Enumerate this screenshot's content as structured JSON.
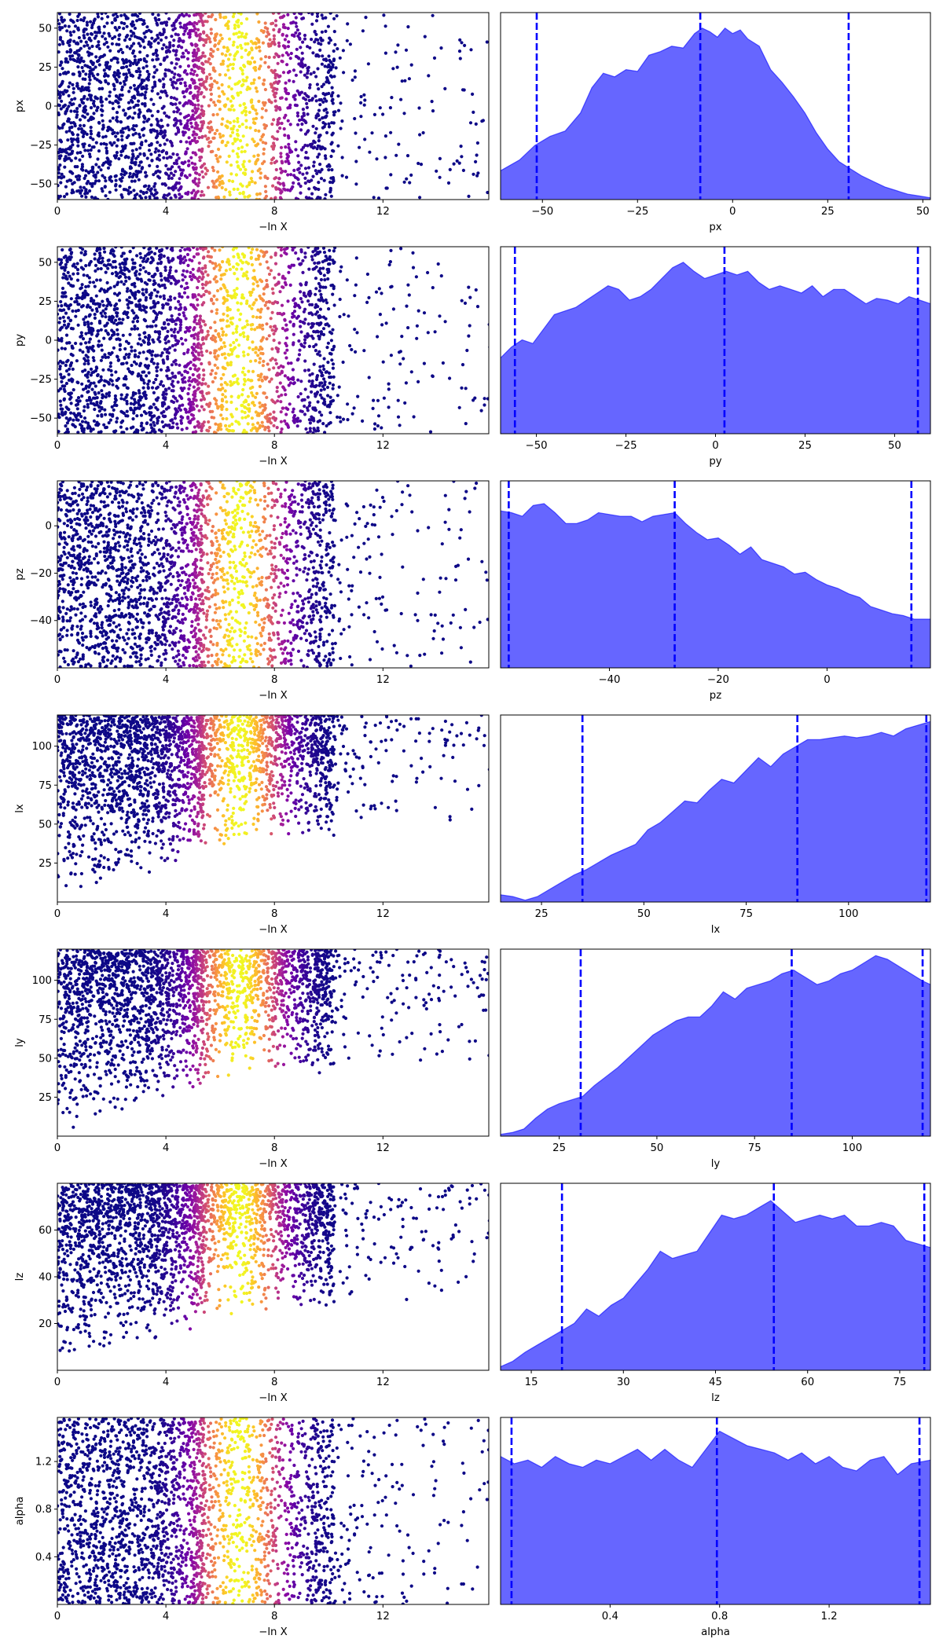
{
  "chart_data": [
    {
      "type": "scatter",
      "panel": "px-trace",
      "x_range": [
        0,
        15.9
      ],
      "y_range": [
        -60,
        60
      ],
      "xticks": [
        0,
        4,
        8,
        12
      ],
      "xtick_labels": [
        "0",
        "4",
        "8",
        "12"
      ],
      "yticks": [
        -50,
        -25,
        0,
        25,
        50
      ],
      "ytick_labels": [
        "−50",
        "−25",
        "0",
        "25",
        "50"
      ],
      "xlabel": "−ln X",
      "ylabel": "px",
      "colormap": "plasma",
      "color_peak_x": 6.7
    },
    {
      "type": "area",
      "panel": "px-posterior",
      "x_range": [
        -61,
        52
      ],
      "xticks": [
        -50,
        -25,
        0,
        25,
        50
      ],
      "xtick_labels": [
        "−50",
        "−25",
        "0",
        "25",
        "50"
      ],
      "xlabel": "px",
      "x": [
        -61,
        -56,
        -52,
        -48,
        -44,
        -40,
        -37,
        -34,
        -31,
        -28,
        -25,
        -22,
        -19,
        -16,
        -13,
        -10,
        -8,
        -6,
        -4,
        -2,
        0,
        2,
        4,
        7,
        10,
        13,
        16,
        19,
        22,
        25,
        28,
        31,
        34,
        37,
        40,
        43,
        46,
        49,
        52
      ],
      "y": [
        0.16,
        0.22,
        0.3,
        0.35,
        0.38,
        0.48,
        0.62,
        0.7,
        0.68,
        0.72,
        0.71,
        0.8,
        0.82,
        0.85,
        0.84,
        0.92,
        0.95,
        0.93,
        0.9,
        0.95,
        0.92,
        0.94,
        0.89,
        0.85,
        0.72,
        0.65,
        0.57,
        0.48,
        0.37,
        0.28,
        0.21,
        0.17,
        0.13,
        0.1,
        0.07,
        0.05,
        0.03,
        0.02,
        0.01
      ],
      "quantile_lines": [
        -51.5,
        -8.5,
        30.5
      ],
      "color": "#6666ff",
      "line_color": "#0000ff"
    },
    {
      "type": "scatter",
      "panel": "py-trace",
      "x_range": [
        0,
        15.9
      ],
      "y_range": [
        -60,
        60
      ],
      "xticks": [
        0,
        4,
        8,
        12
      ],
      "xtick_labels": [
        "0",
        "4",
        "8",
        "12"
      ],
      "yticks": [
        -50,
        -25,
        0,
        25,
        50
      ],
      "ytick_labels": [
        "−50",
        "−25",
        "0",
        "25",
        "50"
      ],
      "xlabel": "−ln X",
      "ylabel": "py",
      "colormap": "plasma",
      "color_peak_x": 6.7
    },
    {
      "type": "area",
      "panel": "py-posterior",
      "x_range": [
        -60,
        60
      ],
      "xticks": [
        -50,
        -25,
        0,
        25,
        50
      ],
      "xtick_labels": [
        "−50",
        "−25",
        "0",
        "25",
        "50"
      ],
      "xlabel": "py",
      "x": [
        -60,
        -57,
        -54,
        -51,
        -48,
        -45,
        -42,
        -39,
        -36,
        -33,
        -30,
        -27,
        -24,
        -21,
        -18,
        -15,
        -12,
        -9,
        -6,
        -3,
        0,
        3,
        6,
        9,
        12,
        15,
        18,
        21,
        24,
        27,
        30,
        33,
        36,
        39,
        42,
        45,
        48,
        51,
        54,
        57,
        60
      ],
      "y": [
        0.42,
        0.48,
        0.52,
        0.5,
        0.58,
        0.66,
        0.68,
        0.7,
        0.74,
        0.78,
        0.82,
        0.8,
        0.74,
        0.76,
        0.8,
        0.86,
        0.92,
        0.95,
        0.9,
        0.86,
        0.88,
        0.9,
        0.88,
        0.9,
        0.84,
        0.8,
        0.82,
        0.8,
        0.78,
        0.82,
        0.76,
        0.8,
        0.8,
        0.76,
        0.72,
        0.75,
        0.74,
        0.72,
        0.76,
        0.74,
        0.72
      ],
      "quantile_lines": [
        -56,
        2.5,
        56.5
      ],
      "color": "#6666ff",
      "line_color": "#0000ff"
    },
    {
      "type": "scatter",
      "panel": "pz-trace",
      "x_range": [
        0,
        15.9
      ],
      "y_range": [
        -60,
        19
      ],
      "xticks": [
        0,
        4,
        8,
        12
      ],
      "xtick_labels": [
        "0",
        "4",
        "8",
        "12"
      ],
      "yticks": [
        -40,
        -20,
        0
      ],
      "ytick_labels": [
        "−40",
        "−20",
        "0"
      ],
      "xlabel": "−ln X",
      "ylabel": "pz",
      "colormap": "plasma",
      "color_peak_x": 6.7
    },
    {
      "type": "area",
      "panel": "pz-posterior",
      "x_range": [
        -60,
        19
      ],
      "xticks": [
        -40,
        -20,
        0
      ],
      "xtick_labels": [
        "−40",
        "−20",
        "0"
      ],
      "xlabel": "pz",
      "x": [
        -60,
        -58,
        -56,
        -54,
        -52,
        -50,
        -48,
        -46,
        -44,
        -42,
        -40,
        -38,
        -36,
        -34,
        -32,
        -30,
        -28,
        -26,
        -24,
        -22,
        -20,
        -18,
        -16,
        -14,
        -12,
        -10,
        -8,
        -6,
        -4,
        -2,
        0,
        2,
        4,
        6,
        8,
        10,
        12,
        14,
        16,
        19
      ],
      "y": [
        0.87,
        0.86,
        0.84,
        0.9,
        0.91,
        0.86,
        0.8,
        0.8,
        0.82,
        0.86,
        0.85,
        0.84,
        0.84,
        0.81,
        0.84,
        0.85,
        0.86,
        0.8,
        0.75,
        0.71,
        0.72,
        0.68,
        0.63,
        0.67,
        0.6,
        0.58,
        0.56,
        0.52,
        0.53,
        0.49,
        0.46,
        0.44,
        0.41,
        0.39,
        0.34,
        0.32,
        0.3,
        0.29,
        0.27,
        0.27
      ],
      "quantile_lines": [
        -58.5,
        -28,
        15.5
      ],
      "color": "#6666ff",
      "line_color": "#0000ff"
    },
    {
      "type": "scatter",
      "panel": "lx-trace",
      "x_range": [
        0,
        15.9
      ],
      "y_range": [
        0,
        120
      ],
      "xticks": [
        0,
        4,
        8,
        12
      ],
      "xtick_labels": [
        "0",
        "4",
        "8",
        "12"
      ],
      "yticks": [
        25,
        50,
        75,
        100
      ],
      "ytick_labels": [
        "25",
        "50",
        "75",
        "100"
      ],
      "xlabel": "−ln X",
      "ylabel": "lx",
      "colormap": "plasma",
      "color_peak_x": 6.7
    },
    {
      "type": "area",
      "panel": "lx-posterior",
      "x_range": [
        15,
        120
      ],
      "xticks": [
        25,
        50,
        75,
        100
      ],
      "xtick_labels": [
        "25",
        "50",
        "75",
        "100"
      ],
      "xlabel": "lx",
      "x": [
        15,
        18,
        21,
        24,
        27,
        30,
        33,
        36,
        39,
        42,
        45,
        48,
        51,
        54,
        57,
        60,
        63,
        66,
        69,
        72,
        75,
        78,
        81,
        84,
        87,
        90,
        93,
        96,
        99,
        102,
        105,
        108,
        111,
        114,
        117,
        120
      ],
      "y": [
        0.04,
        0.03,
        0.01,
        0.03,
        0.07,
        0.11,
        0.15,
        0.18,
        0.22,
        0.26,
        0.29,
        0.32,
        0.4,
        0.44,
        0.5,
        0.56,
        0.55,
        0.62,
        0.68,
        0.66,
        0.73,
        0.8,
        0.75,
        0.82,
        0.86,
        0.9,
        0.9,
        0.91,
        0.92,
        0.91,
        0.92,
        0.94,
        0.92,
        0.96,
        0.98,
        1.0
      ],
      "quantile_lines": [
        35,
        87.5,
        119
      ],
      "color": "#6666ff",
      "line_color": "#0000ff"
    },
    {
      "type": "scatter",
      "panel": "ly-trace",
      "x_range": [
        0,
        15.9
      ],
      "y_range": [
        0,
        120
      ],
      "xticks": [
        0,
        4,
        8,
        12
      ],
      "xtick_labels": [
        "0",
        "4",
        "8",
        "12"
      ],
      "yticks": [
        25,
        50,
        75,
        100
      ],
      "ytick_labels": [
        "25",
        "50",
        "75",
        "100"
      ],
      "xlabel": "−ln X",
      "ylabel": "ly",
      "colormap": "plasma",
      "color_peak_x": 6.7
    },
    {
      "type": "area",
      "panel": "ly-posterior",
      "x_range": [
        10,
        120
      ],
      "xticks": [
        25,
        50,
        75,
        100
      ],
      "xtick_labels": [
        "25",
        "50",
        "75",
        "100"
      ],
      "xlabel": "ly",
      "x": [
        10,
        13,
        16,
        19,
        22,
        25,
        28,
        31,
        34,
        37,
        40,
        43,
        46,
        49,
        52,
        55,
        58,
        61,
        64,
        67,
        70,
        73,
        76,
        79,
        82,
        85,
        88,
        91,
        94,
        97,
        100,
        103,
        106,
        109,
        112,
        115,
        118,
        120
      ],
      "y": [
        0.01,
        0.02,
        0.04,
        0.1,
        0.15,
        0.18,
        0.2,
        0.22,
        0.28,
        0.33,
        0.38,
        0.44,
        0.5,
        0.56,
        0.6,
        0.64,
        0.66,
        0.66,
        0.72,
        0.8,
        0.76,
        0.82,
        0.84,
        0.86,
        0.9,
        0.92,
        0.88,
        0.84,
        0.86,
        0.9,
        0.92,
        0.96,
        1.0,
        0.98,
        0.94,
        0.9,
        0.86,
        0.84
      ],
      "quantile_lines": [
        30.5,
        84.5,
        118
      ],
      "color": "#6666ff",
      "line_color": "#0000ff"
    },
    {
      "type": "scatter",
      "panel": "lz-trace",
      "x_range": [
        0,
        15.9
      ],
      "y_range": [
        0,
        80
      ],
      "xticks": [
        0,
        4,
        8,
        12
      ],
      "xtick_labels": [
        "0",
        "4",
        "8",
        "12"
      ],
      "yticks": [
        20,
        40,
        60
      ],
      "ytick_labels": [
        "20",
        "40",
        "60"
      ],
      "xlabel": "−ln X",
      "ylabel": "lz",
      "colormap": "plasma",
      "color_peak_x": 6.7
    },
    {
      "type": "area",
      "panel": "lz-posterior",
      "x_range": [
        10,
        80
      ],
      "xticks": [
        15,
        30,
        45,
        60,
        75
      ],
      "xtick_labels": [
        "15",
        "30",
        "45",
        "60",
        "75"
      ],
      "xlabel": "lz",
      "x": [
        10,
        12,
        14,
        16,
        18,
        20,
        22,
        24,
        26,
        28,
        30,
        32,
        34,
        36,
        38,
        40,
        42,
        44,
        46,
        48,
        50,
        52,
        54,
        56,
        58,
        60,
        62,
        64,
        66,
        68,
        70,
        72,
        74,
        76,
        78,
        80
      ],
      "y": [
        0.02,
        0.05,
        0.1,
        0.14,
        0.18,
        0.22,
        0.26,
        0.34,
        0.3,
        0.36,
        0.4,
        0.48,
        0.56,
        0.66,
        0.62,
        0.64,
        0.66,
        0.76,
        0.86,
        0.84,
        0.86,
        0.9,
        0.94,
        0.88,
        0.82,
        0.84,
        0.86,
        0.84,
        0.86,
        0.8,
        0.8,
        0.82,
        0.8,
        0.72,
        0.7,
        0.68
      ],
      "quantile_lines": [
        20,
        54.5,
        79
      ],
      "color": "#6666ff",
      "line_color": "#0000ff"
    },
    {
      "type": "scatter",
      "panel": "alpha-trace",
      "x_range": [
        0,
        15.9
      ],
      "y_range": [
        0,
        1.57
      ],
      "xticks": [
        0,
        4,
        8,
        12
      ],
      "xtick_labels": [
        "0",
        "4",
        "8",
        "12"
      ],
      "yticks": [
        0.4,
        0.8,
        1.2
      ],
      "ytick_labels": [
        "0.4",
        "0.8",
        "1.2"
      ],
      "xlabel": "−ln X",
      "ylabel": "alpha",
      "colormap": "plasma",
      "color_peak_x": 6.7
    },
    {
      "type": "area",
      "panel": "alpha-posterior",
      "x_range": [
        0,
        1.57
      ],
      "xticks": [
        0.4,
        0.8,
        1.2
      ],
      "xtick_labels": [
        "0.4",
        "0.8",
        "1.2"
      ],
      "xlabel": "alpha",
      "x": [
        0,
        0.05,
        0.1,
        0.15,
        0.2,
        0.25,
        0.3,
        0.35,
        0.4,
        0.45,
        0.5,
        0.55,
        0.6,
        0.65,
        0.7,
        0.75,
        0.8,
        0.85,
        0.9,
        0.95,
        1.0,
        1.05,
        1.1,
        1.15,
        1.2,
        1.25,
        1.3,
        1.35,
        1.4,
        1.45,
        1.5,
        1.57
      ],
      "y": [
        0.82,
        0.78,
        0.8,
        0.76,
        0.82,
        0.78,
        0.76,
        0.8,
        0.78,
        0.82,
        0.86,
        0.8,
        0.86,
        0.8,
        0.76,
        0.86,
        0.96,
        0.92,
        0.88,
        0.86,
        0.84,
        0.8,
        0.84,
        0.78,
        0.82,
        0.76,
        0.74,
        0.8,
        0.82,
        0.72,
        0.78,
        0.8
      ],
      "quantile_lines": [
        0.04,
        0.79,
        1.53
      ],
      "color": "#6666ff",
      "line_color": "#0000ff"
    }
  ]
}
